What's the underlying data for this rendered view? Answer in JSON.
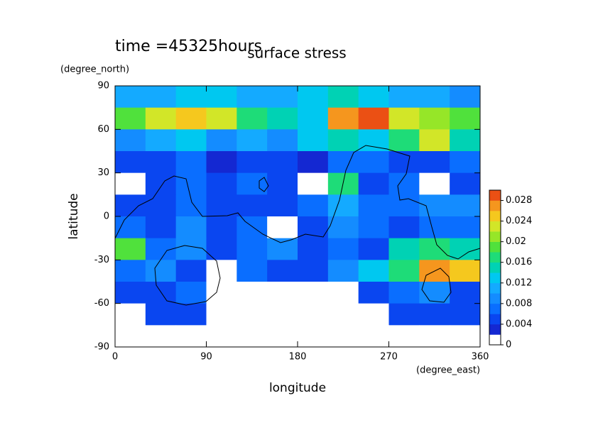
{
  "chart_data": {
    "type": "contour",
    "title": "surface stress",
    "subtitle": "time =45325hours",
    "x_label": "longitude",
    "x_unit": "(degree_east)",
    "y_label": "latitude",
    "y_unit": "(degree_north)",
    "xlim": [
      0,
      360
    ],
    "xticks": [
      0,
      90,
      180,
      270,
      360
    ],
    "ylim": [
      -90,
      90
    ],
    "yticks": [
      -90,
      -60,
      -30,
      0,
      30,
      60,
      90
    ],
    "x": [
      15,
      45,
      75,
      105,
      135,
      165,
      195,
      225,
      255,
      285,
      315,
      345
    ],
    "y": [
      82.5,
      67.5,
      52.5,
      37.5,
      22.5,
      7.5,
      -7.5,
      -22.5,
      -37.5,
      -52.5,
      -67.5,
      -82.5
    ],
    "values": [
      [
        0.01,
        0.01,
        0.012,
        0.012,
        0.01,
        0.01,
        0.012,
        0.014,
        0.012,
        0.01,
        0.01,
        0.008
      ],
      [
        0.018,
        0.022,
        0.024,
        0.022,
        0.016,
        0.014,
        0.012,
        0.026,
        0.028,
        0.022,
        0.02,
        0.018
      ],
      [
        0.008,
        0.01,
        0.012,
        0.008,
        0.01,
        0.008,
        0.012,
        0.014,
        0.012,
        0.016,
        0.022,
        0.014
      ],
      [
        0.004,
        0.004,
        0.006,
        0.002,
        0.004,
        0.004,
        0.002,
        0.006,
        0.006,
        0.004,
        0.004,
        0.006
      ],
      [
        0.001,
        0.004,
        0.006,
        0.004,
        0.006,
        0.004,
        0.001,
        0.016,
        0.004,
        0.006,
        0.001,
        0.004
      ],
      [
        0.004,
        0.004,
        0.006,
        0.004,
        0.004,
        0.004,
        0.006,
        0.01,
        0.006,
        0.006,
        0.008,
        0.008
      ],
      [
        0.006,
        0.004,
        0.008,
        0.004,
        0.006,
        0.001,
        0.004,
        0.008,
        0.006,
        0.004,
        0.006,
        0.006
      ],
      [
        0.018,
        0.006,
        0.008,
        0.004,
        0.006,
        0.008,
        0.004,
        0.006,
        0.004,
        0.014,
        0.016,
        0.014
      ],
      [
        0.006,
        0.008,
        0.004,
        0.001,
        0.006,
        0.004,
        0.004,
        0.008,
        0.012,
        0.016,
        0.026,
        0.024
      ],
      [
        0.004,
        0.004,
        0.006,
        0.001,
        0.001,
        0.001,
        0.001,
        0.001,
        0.004,
        0.006,
        0.008,
        0.004
      ],
      [
        0.001,
        0.004,
        0.004,
        0.001,
        0.001,
        0.001,
        0.001,
        0.001,
        0.001,
        0.004,
        0.004,
        0.004
      ],
      [
        0.001,
        0.001,
        0.001,
        0.001,
        0.001,
        0.001,
        0.001,
        0.001,
        0.001,
        0.001,
        0.001,
        0.001
      ]
    ],
    "colorbar": {
      "lim": [
        0,
        0.03
      ],
      "ticks": [
        0,
        0.004,
        0.008,
        0.012,
        0.016,
        0.02,
        0.024,
        0.028
      ],
      "colors": [
        "#ffffff",
        "#1428d2",
        "#0a46f0",
        "#0a6eff",
        "#148cff",
        "#14aaff",
        "#00c8f0",
        "#00d2b4",
        "#1edc78",
        "#50e13c",
        "#96e628",
        "#d2e628",
        "#f5c81e",
        "#f5961e",
        "#eb5014"
      ]
    }
  }
}
